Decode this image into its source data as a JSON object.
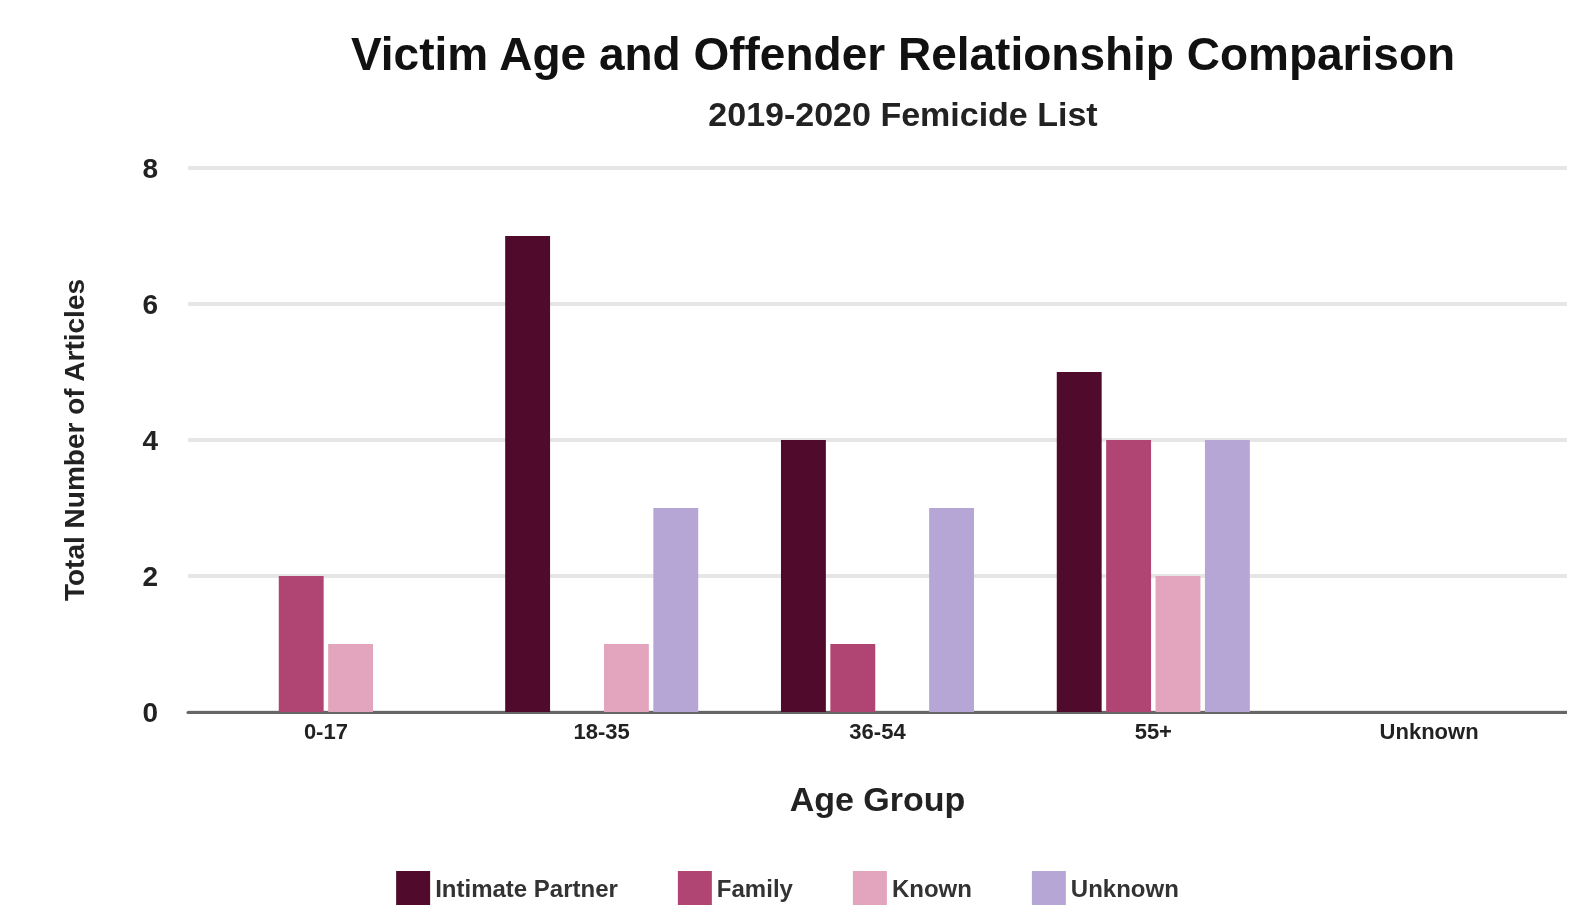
{
  "chart_data": {
    "type": "bar",
    "title": "Victim Age and Offender Relationship Comparison",
    "subtitle": "2019-2020 Femicide List",
    "xlabel": "Age Group",
    "ylabel": "Total Number of Articles",
    "categories": [
      "0-17",
      "18-35",
      "36-54",
      "55+",
      "Unknown"
    ],
    "series": [
      {
        "name": "Intimate Partner",
        "color": "#500a2c",
        "values": [
          0,
          7,
          4,
          5,
          0
        ]
      },
      {
        "name": "Family",
        "color": "#b04472",
        "values": [
          2,
          0,
          1,
          4,
          0
        ]
      },
      {
        "name": "Known",
        "color": "#e3a5bd",
        "values": [
          1,
          1,
          0,
          2,
          0
        ]
      },
      {
        "name": "Unknown",
        "color": "#b6a6d5",
        "values": [
          0,
          3,
          3,
          4,
          0
        ]
      }
    ],
    "ylim": [
      0,
      8
    ],
    "yticks": [
      0,
      2,
      4,
      6,
      8
    ],
    "grid": "y",
    "legend": "bottom"
  }
}
